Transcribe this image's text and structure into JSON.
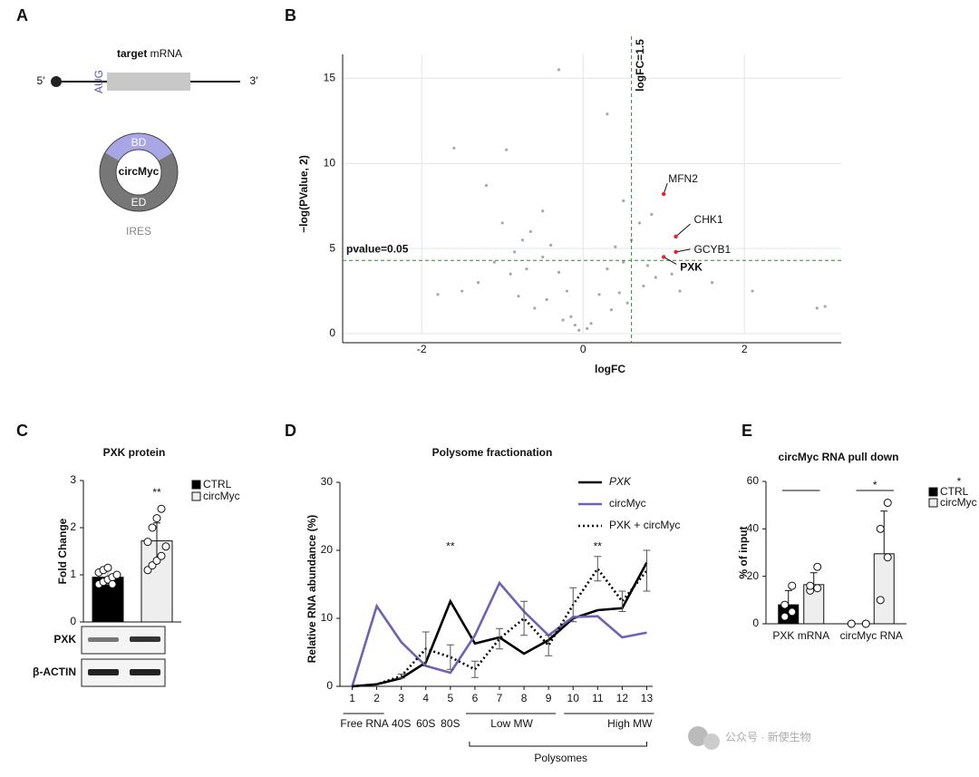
{
  "panel_labels": [
    "A",
    "B",
    "C",
    "D",
    "E"
  ],
  "diagram": {
    "target": "target",
    "mrna": "mRNA",
    "five": "5′",
    "three": "3′",
    "aug": "AUG",
    "bd": "BD",
    "circ": "circMyc",
    "ed": "ED",
    "ires": "IRES"
  },
  "watermark": "公众号 · 新使生物",
  "chart_data": [
    {
      "type": "scatter",
      "xlabel": "logFC",
      "ylabel": "−log(PValue, 2)",
      "xlim": [
        -2.98,
        3.2
      ],
      "ylim": [
        0,
        16.4
      ],
      "xticks": [
        -2,
        0,
        2
      ],
      "yticks": [
        0,
        5,
        10,
        15
      ],
      "grid": true,
      "color": "#a8a8a8",
      "x": [
        -1.8,
        -1.6,
        -1.5,
        -1.3,
        -1.2,
        -1.1,
        -1.0,
        -0.95,
        -0.9,
        -0.85,
        -0.8,
        -0.75,
        -0.7,
        -0.65,
        -0.6,
        -0.5,
        -0.45,
        -0.4,
        -0.3,
        -0.25,
        -0.2,
        -0.1,
        -0.05,
        0.05,
        0.1,
        0.2,
        0.3,
        0.35,
        0.4,
        0.45,
        0.5,
        0.55,
        0.6,
        0.7,
        0.75,
        0.8,
        0.85,
        0.9,
        1.1,
        1.2,
        1.4,
        1.6,
        2.1,
        2.9,
        3.0,
        -0.3,
        0.3,
        -0.5,
        0.5,
        -0.15
      ],
      "y": [
        2.3,
        10.9,
        2.5,
        3.0,
        8.7,
        4.2,
        6.5,
        10.8,
        3.5,
        4.8,
        2.2,
        5.5,
        3.8,
        6.0,
        1.5,
        4.5,
        2.0,
        5.2,
        3.6,
        0.8,
        2.5,
        0.5,
        0.2,
        0.3,
        0.6,
        2.3,
        3.8,
        1.4,
        5.1,
        2.4,
        4.2,
        1.8,
        5.5,
        6.5,
        2.8,
        4.0,
        7.0,
        3.3,
        3.5,
        2.5,
        3.8,
        3.0,
        2.5,
        1.5,
        1.6,
        15.5,
        12.9,
        7.2,
        7.8,
        1.0
      ],
      "highlight_color": "#e8202a",
      "highlights": [
        {
          "label": "MFN2",
          "x": 1.0,
          "y": 8.2
        },
        {
          "label": "CHK1",
          "x": 1.15,
          "y": 5.7
        },
        {
          "label": "GCYB1",
          "x": 1.15,
          "y": 4.8
        },
        {
          "label": "PXK",
          "x": 1.0,
          "y": 4.5
        }
      ],
      "threshold_color": "#2e8b2e",
      "vline": {
        "value": 0.6,
        "label": "logFC=1.5"
      },
      "hline": {
        "value": 4.3,
        "label": "pvalue=0.05"
      }
    },
    {
      "type": "bar",
      "title": "PXK protein",
      "ylabel": "Fold Change",
      "categories": [
        "CTRL",
        "circMyc"
      ],
      "values": [
        0.95,
        1.72
      ],
      "errors": [
        0.15,
        0.38
      ],
      "colors": [
        "#000000",
        "#eeeeee"
      ],
      "points": [
        [
          0.8,
          0.85,
          0.9,
          0.95,
          1.0,
          1.05,
          1.1,
          1.15,
          0.8
        ],
        [
          1.1,
          1.2,
          1.3,
          1.4,
          1.6,
          1.7,
          2.0,
          2.2,
          2.4
        ]
      ],
      "ylim": [
        0,
        3
      ],
      "yticks": [
        0,
        1,
        2,
        3
      ],
      "annotation": "**",
      "blot_labels": [
        "PXK",
        "β-ACTIN"
      ]
    },
    {
      "type": "line",
      "title": "Polysome fractionation",
      "ylabel": "Relative RNA abundance (%)",
      "x": [
        1,
        2,
        3,
        4,
        5,
        6,
        7,
        8,
        9,
        10,
        11,
        12,
        13
      ],
      "xlim": [
        0.5,
        13.5
      ],
      "xticks": [
        1,
        2,
        3,
        4,
        5,
        6,
        7,
        8,
        9,
        10,
        11,
        12,
        13
      ],
      "ylim": [
        0,
        30
      ],
      "yticks": [
        0,
        10,
        20,
        30
      ],
      "series": [
        {
          "name": "PXK",
          "color": "#000000",
          "linestyle": "solid",
          "italic": true,
          "values": [
            0,
            0.3,
            1.2,
            3.5,
            12.5,
            6.3,
            7.2,
            4.8,
            6.8,
            10,
            11.2,
            11.5,
            18.2
          ]
        },
        {
          "name": "circMyc",
          "color": "#6b63b5",
          "linestyle": "solid",
          "values": [
            0,
            11.8,
            6.5,
            3.0,
            2.0,
            7.5,
            15.2,
            11.0,
            7.5,
            10.2,
            10.3,
            7.2,
            7.9
          ]
        },
        {
          "name": "PXK + circMyc",
          "color": "#000000",
          "linestyle": "dotted",
          "values": [
            0,
            0.3,
            1.5,
            5.5,
            4.3,
            2.5,
            7.0,
            10.0,
            6.0,
            12.0,
            17.3,
            12.5,
            17.0
          ],
          "errors": [
            null,
            null,
            0.3,
            2.5,
            1.8,
            1.2,
            1.5,
            2.5,
            1.5,
            2.5,
            1.8,
            1.5,
            3.0
          ]
        }
      ],
      "annotations": [
        {
          "text": "**",
          "x": 5,
          "y": 20.5
        },
        {
          "text": "**",
          "x": 11,
          "y": 20.5
        }
      ],
      "fractions": [
        "Free RNA",
        "40S",
        "60S",
        "80S",
        "Low MW",
        "High MW",
        "Polysomes"
      ]
    },
    {
      "type": "grouped_bar",
      "title": "circMyc RNA pull down",
      "ylabel": "% of input",
      "categories": [
        "PXK mRNA",
        "circMyc RNA"
      ],
      "ylim": [
        0,
        60
      ],
      "yticks": [
        0,
        20,
        40,
        60
      ],
      "series": [
        {
          "name": "CTRL",
          "color": "#000000",
          "values": [
            8,
            0
          ],
          "errors": [
            6,
            0
          ],
          "points": [
            [
              3,
              5,
              8,
              16
            ],
            [
              0,
              0,
              0,
              0
            ]
          ]
        },
        {
          "name": "circMyc",
          "color": "#eeeeee",
          "values": [
            16.5,
            29.5
          ],
          "errors": [
            5,
            18
          ],
          "points": [
            [
              14,
              15,
              16,
              24
            ],
            [
              10,
              28,
              40,
              51
            ]
          ]
        }
      ],
      "annotations": [
        "*",
        "*"
      ]
    }
  ]
}
